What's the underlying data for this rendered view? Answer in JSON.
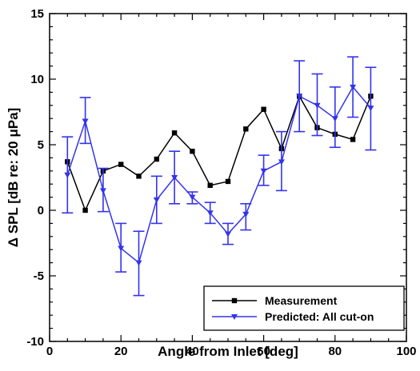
{
  "chart_data": {
    "type": "line",
    "title": "",
    "xlabel": "Angle from Inlet [deg]",
    "ylabel": "Δ SPL [dB re: 20 μPa]",
    "xlim": [
      0,
      100
    ],
    "ylim": [
      -10,
      15
    ],
    "xticks": [
      0,
      20,
      40,
      60,
      80,
      100
    ],
    "yticks": [
      -10,
      -5,
      0,
      5,
      10,
      15
    ],
    "grid": false,
    "legend_position": "bottom-right",
    "series": [
      {
        "name": "Measurement",
        "color": "#000000",
        "marker": "square",
        "x": [
          5,
          10,
          15,
          20,
          25,
          30,
          35,
          40,
          45,
          50,
          55,
          60,
          65,
          70,
          75,
          80,
          85,
          90
        ],
        "y": [
          3.7,
          0.0,
          3.0,
          3.5,
          2.6,
          3.9,
          5.9,
          4.5,
          1.9,
          2.2,
          6.2,
          7.7,
          4.7,
          8.7,
          6.3,
          5.8,
          5.4,
          8.7
        ]
      },
      {
        "name": "Predicted: All cut-on",
        "color": "#3333ee",
        "marker": "triangle-down",
        "x": [
          5,
          10,
          15,
          20,
          25,
          30,
          35,
          40,
          45,
          50,
          55,
          60,
          65,
          70,
          75,
          80,
          85,
          90
        ],
        "y": [
          2.7,
          6.8,
          1.5,
          -2.9,
          -4.0,
          0.8,
          2.5,
          1.0,
          -0.2,
          -1.8,
          -0.3,
          3.0,
          3.7,
          8.7,
          8.0,
          7.0,
          9.4,
          7.8
        ],
        "yerr_low": [
          -0.2,
          5.1,
          -0.1,
          -4.7,
          -6.5,
          -1.0,
          0.5,
          0.5,
          -1.0,
          -2.6,
          -1.5,
          1.9,
          1.5,
          6.0,
          5.7,
          4.8,
          7.1,
          4.6
        ],
        "yerr_high": [
          5.6,
          8.6,
          3.2,
          -1.0,
          -1.6,
          2.6,
          4.5,
          1.4,
          0.6,
          -1.0,
          0.5,
          4.2,
          6.0,
          11.4,
          10.4,
          9.4,
          11.7,
          10.9
        ]
      }
    ]
  }
}
